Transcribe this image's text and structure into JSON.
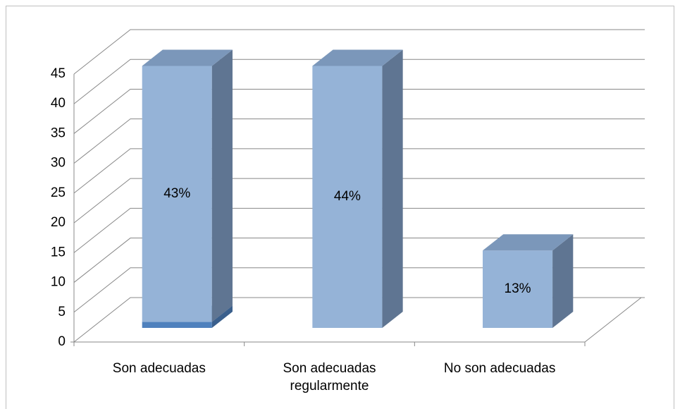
{
  "chart_data": {
    "type": "bar3d",
    "categories": [
      "Son adecuadas",
      "Son adecuadas regularmente",
      "No son adecuadas"
    ],
    "series": [
      {
        "color": "#4f81bd",
        "values": [
          1,
          null,
          null
        ]
      },
      {
        "color": "#95b3d7",
        "values": [
          43,
          44,
          13
        ],
        "value_labels": [
          "43%",
          "44%",
          "13%"
        ]
      }
    ],
    "ylim": [
      0,
      45
    ],
    "yticks": [
      0,
      5,
      10,
      15,
      20,
      25,
      30,
      35,
      40,
      45
    ],
    "grid": true
  }
}
